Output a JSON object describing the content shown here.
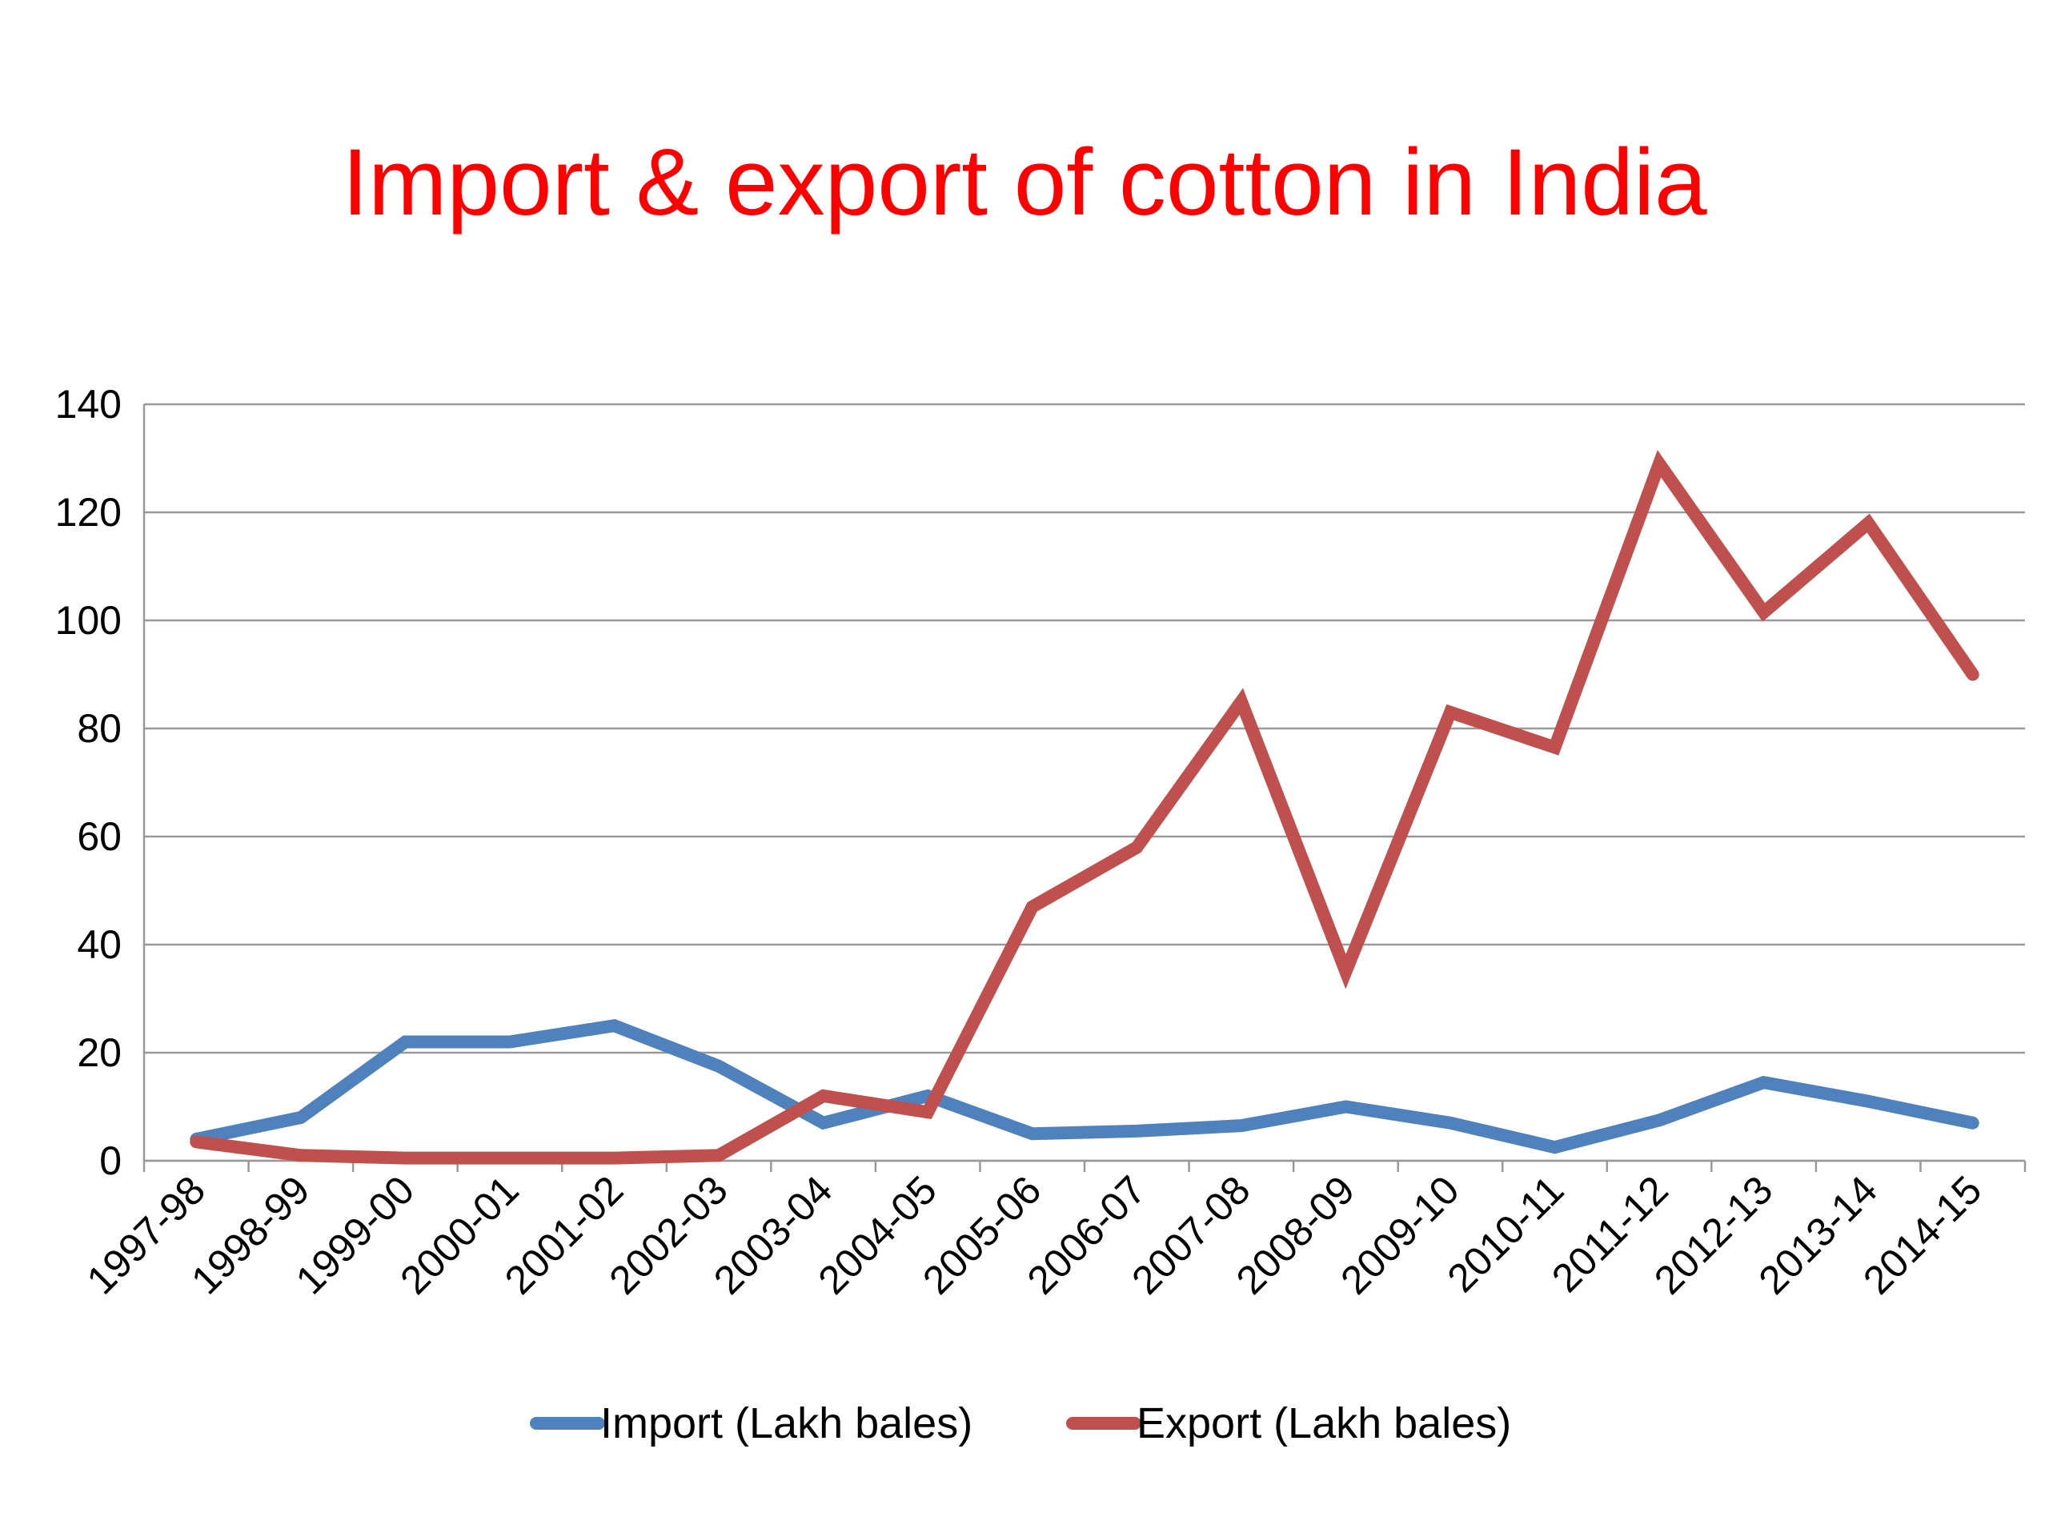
{
  "chart_data": {
    "type": "line",
    "title": "Import & export of cotton in India",
    "title_color": "#ff0000",
    "xlabel": "",
    "ylabel": "",
    "ylim": [
      0,
      140
    ],
    "yticks": [
      0,
      20,
      40,
      60,
      80,
      100,
      120,
      140
    ],
    "grid": true,
    "legend_position": "bottom",
    "categories": [
      "1997-98",
      "1998-99",
      "1999-00",
      "2000-01",
      "2001-02",
      "2002-03",
      "2003-04",
      "2004-05",
      "2005-06",
      "2006-07",
      "2007-08",
      "2008-09",
      "2009-10",
      "2010-11",
      "2011-12",
      "2012-13",
      "2013-14",
      "2014-15"
    ],
    "series": [
      {
        "name": "Import (Lakh bales)",
        "color": "#4f81bd",
        "values": [
          4,
          8,
          22,
          22,
          25,
          17.5,
          7,
          12,
          5,
          5.5,
          6.5,
          10,
          7,
          2.5,
          7.5,
          14.5,
          11,
          7
        ]
      },
      {
        "name": "Export (Lakh bales)",
        "color": "#c0504d",
        "values": [
          3.5,
          1,
          0.5,
          0.5,
          0.5,
          1,
          12,
          9,
          47,
          58,
          85,
          35,
          83,
          76.5,
          129,
          101.5,
          118,
          90
        ]
      }
    ]
  }
}
